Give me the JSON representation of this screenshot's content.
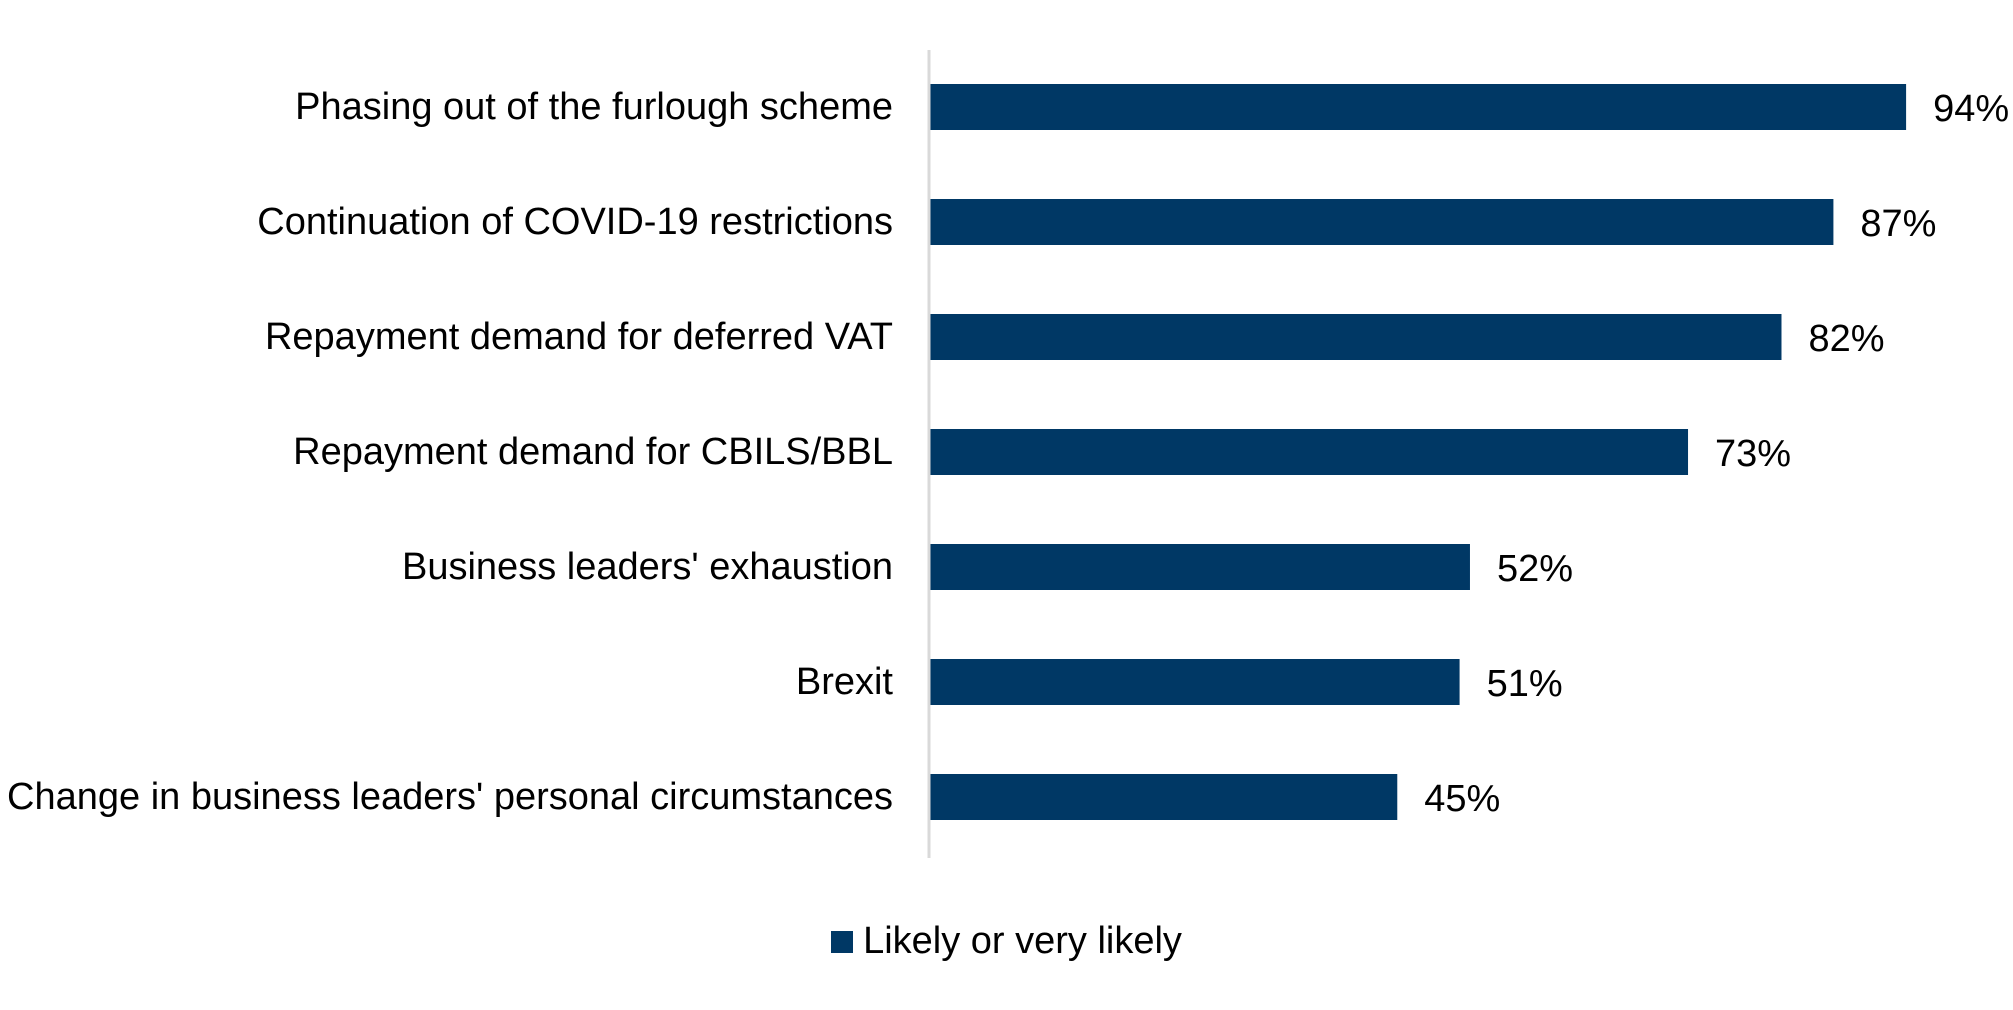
{
  "chart_data": {
    "type": "bar",
    "orientation": "horizontal",
    "categories": [
      "Phasing out of the furlough scheme",
      "Continuation of COVID-19 restrictions",
      "Repayment demand for deferred VAT",
      "Repayment demand for CBILS/BBL",
      "Business leaders' exhaustion",
      "Brexit",
      "Change in business leaders' personal circumstances"
    ],
    "series": [
      {
        "name": "Likely or very likely",
        "values": [
          94,
          87,
          82,
          73,
          52,
          51,
          45
        ],
        "data_labels": [
          "94%",
          "87%",
          "82%",
          "73%",
          "52%",
          "51%",
          "45%"
        ]
      }
    ],
    "xlim": [
      0,
      100
    ],
    "value_unit": "%",
    "grid": false,
    "legend_position": "bottom",
    "colors": {
      "bar": "#003865",
      "axis": "#d9d9d9"
    }
  },
  "legend": {
    "label": "Likely or very likely"
  }
}
